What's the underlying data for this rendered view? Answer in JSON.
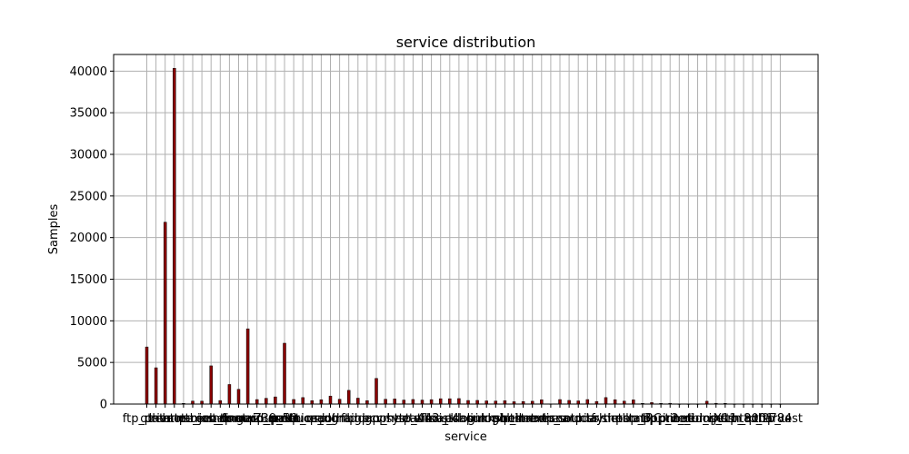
{
  "chart_data": {
    "type": "bar",
    "title": "service distribution",
    "xlabel": "service",
    "ylabel": "Samples",
    "ylim": [
      0,
      42000
    ],
    "yticks": [
      0,
      5000,
      10000,
      15000,
      20000,
      25000,
      30000,
      35000,
      40000
    ],
    "grid": true,
    "bar_color": "#8b0000",
    "categories": [
      "ftp_data",
      "other",
      "private",
      "http",
      "remote_job",
      "name",
      "netbios_ns",
      "eco_i",
      "mtp",
      "telnet",
      "finger",
      "domain_u",
      "supdup",
      "uucp_path",
      "Z39_50",
      "smtp",
      "csnet_ns",
      "uucp",
      "netbios_dgm",
      "urp_i",
      "auth",
      "domain",
      "ftp",
      "bgp",
      "ldap",
      "ecr_i",
      "gopher",
      "vmnet",
      "systat",
      "http_443",
      "efs",
      "whois",
      "imap4",
      "iso_tsap",
      "echo",
      "klogin",
      "link",
      "sunrpc",
      "login",
      "kshell",
      "sql_net",
      "time",
      "hostnames",
      "exec",
      "ntp_u",
      "discard",
      "nntp",
      "courier",
      "ctf",
      "ssh",
      "daytime",
      "shell",
      "netstat",
      "pop_3",
      "nnsp",
      "IRC",
      "pop_2",
      "printer",
      "tim_i",
      "pm_dump",
      "red_i",
      "netbios_ssn",
      "rje",
      "X11",
      "urh_i",
      "http_8001",
      "aol",
      "http_2784",
      "tftp_u",
      "harvest"
    ],
    "values": [
      6860,
      4360,
      21850,
      40340,
      80,
      360,
      350,
      4590,
      420,
      2350,
      1770,
      9040,
      540,
      690,
      860,
      7310,
      550,
      780,
      410,
      520,
      960,
      580,
      1650,
      710,
      410,
      3080,
      580,
      610,
      480,
      550,
      480,
      530,
      640,
      640,
      660,
      430,
      440,
      380,
      360,
      400,
      280,
      300,
      340,
      510,
      20,
      540,
      440,
      380,
      540,
      310,
      780,
      520,
      350,
      500,
      80,
      180,
      80,
      90,
      10,
      10,
      10,
      340,
      90,
      80,
      10,
      10,
      10,
      10,
      10,
      10
    ]
  }
}
